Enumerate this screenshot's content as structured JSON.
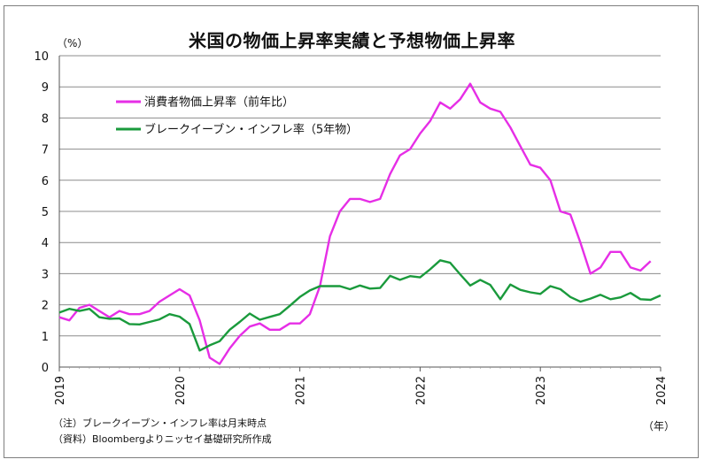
{
  "chart_data": {
    "type": "line",
    "title": "米国の物価上昇率実績と予想物価上昇率",
    "ylabel_unit": "（%）",
    "xlabel_unit": "（年）",
    "ylim": [
      0,
      10
    ],
    "yticks": [
      0,
      1,
      2,
      3,
      4,
      5,
      6,
      7,
      8,
      9,
      10
    ],
    "xlim": [
      2019.0,
      2024.0
    ],
    "xticks": [
      "2019",
      "2020",
      "2021",
      "2022",
      "2023",
      "2024"
    ],
    "grid": true,
    "legend_position": "top-left",
    "notes": [
      "（注）ブレークイーブン・インフレ率は月末時点",
      "（資料）Bloombergよりニッセイ基礎研究所作成"
    ],
    "series": [
      {
        "name": "消費者物価上昇率（前年比）",
        "color": "#e62ee6",
        "x": [
          2019.0,
          2019.083,
          2019.167,
          2019.25,
          2019.333,
          2019.417,
          2019.5,
          2019.583,
          2019.667,
          2019.75,
          2019.833,
          2019.917,
          2020.0,
          2020.083,
          2020.167,
          2020.25,
          2020.333,
          2020.417,
          2020.5,
          2020.583,
          2020.667,
          2020.75,
          2020.833,
          2020.917,
          2021.0,
          2021.083,
          2021.167,
          2021.25,
          2021.333,
          2021.417,
          2021.5,
          2021.583,
          2021.667,
          2021.75,
          2021.833,
          2021.917,
          2022.0,
          2022.083,
          2022.167,
          2022.25,
          2022.333,
          2022.417,
          2022.5,
          2022.583,
          2022.667,
          2022.75,
          2022.833,
          2022.917,
          2023.0,
          2023.083,
          2023.167,
          2023.25,
          2023.333,
          2023.417,
          2023.5,
          2023.583,
          2023.667,
          2023.75,
          2023.833,
          2023.917
        ],
        "values": [
          1.6,
          1.5,
          1.9,
          2.0,
          1.8,
          1.6,
          1.8,
          1.7,
          1.7,
          1.8,
          2.1,
          2.3,
          2.5,
          2.3,
          1.5,
          0.3,
          0.1,
          0.6,
          1.0,
          1.3,
          1.4,
          1.2,
          1.2,
          1.4,
          1.4,
          1.7,
          2.6,
          4.2,
          5.0,
          5.4,
          5.4,
          5.3,
          5.4,
          6.2,
          6.8,
          7.0,
          7.5,
          7.9,
          8.5,
          8.3,
          8.6,
          9.1,
          8.5,
          8.3,
          8.2,
          7.7,
          7.1,
          6.5,
          6.4,
          6.0,
          5.0,
          4.9,
          4.0,
          3.0,
          3.2,
          3.7,
          3.7,
          3.2,
          3.1,
          3.4
        ]
      },
      {
        "name": "ブレークイーブン・インフレ率（5年物）",
        "color": "#1a9a3c",
        "x": [
          2019.0,
          2019.083,
          2019.167,
          2019.25,
          2019.333,
          2019.417,
          2019.5,
          2019.583,
          2019.667,
          2019.75,
          2019.833,
          2019.917,
          2020.0,
          2020.083,
          2020.167,
          2020.25,
          2020.333,
          2020.417,
          2020.5,
          2020.583,
          2020.667,
          2020.75,
          2020.833,
          2020.917,
          2021.0,
          2021.083,
          2021.167,
          2021.25,
          2021.333,
          2021.417,
          2021.5,
          2021.583,
          2021.667,
          2021.75,
          2021.833,
          2021.917,
          2022.0,
          2022.083,
          2022.167,
          2022.25,
          2022.333,
          2022.417,
          2022.5,
          2022.583,
          2022.667,
          2022.75,
          2022.833,
          2022.917,
          2023.0,
          2023.083,
          2023.167,
          2023.25,
          2023.333,
          2023.417,
          2023.5,
          2023.583,
          2023.667,
          2023.75,
          2023.833,
          2023.917,
          2024.0
        ],
        "values": [
          1.75,
          1.87,
          1.8,
          1.87,
          1.6,
          1.55,
          1.56,
          1.38,
          1.37,
          1.45,
          1.53,
          1.7,
          1.62,
          1.38,
          0.53,
          0.7,
          0.83,
          1.2,
          1.45,
          1.72,
          1.52,
          1.61,
          1.7,
          1.97,
          2.25,
          2.46,
          2.6,
          2.6,
          2.6,
          2.5,
          2.62,
          2.52,
          2.54,
          2.93,
          2.8,
          2.92,
          2.88,
          3.14,
          3.43,
          3.35,
          2.98,
          2.62,
          2.8,
          2.64,
          2.18,
          2.65,
          2.48,
          2.4,
          2.35,
          2.6,
          2.5,
          2.25,
          2.1,
          2.2,
          2.32,
          2.18,
          2.24,
          2.38,
          2.18,
          2.16,
          2.3
        ]
      }
    ]
  }
}
